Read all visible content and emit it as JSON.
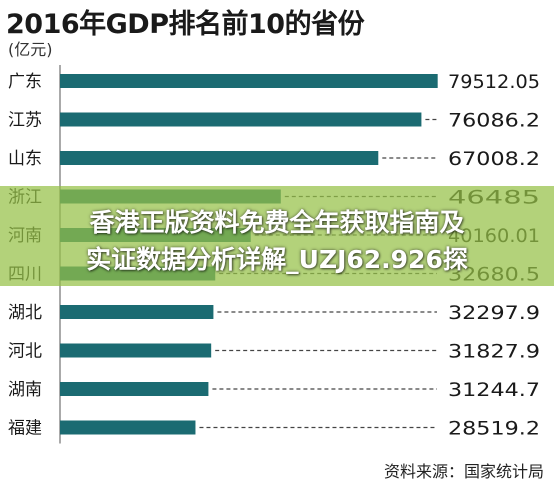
{
  "chart_data": {
    "type": "bar",
    "orientation": "horizontal",
    "title": "2016年GDP排名前10的省份",
    "unit": "(亿元)",
    "categories": [
      "广东",
      "江苏",
      "山东",
      "浙江",
      "河南",
      "四川",
      "湖北",
      "河北",
      "湖南",
      "福建"
    ],
    "values": [
      79512.05,
      76086.2,
      67008.2,
      46485,
      40160.01,
      32680.5,
      32297.9,
      31827.9,
      31244.7,
      28519.2
    ],
    "value_labels": [
      "79512.05",
      "76086.2",
      "67008.2",
      "46485",
      "40160.01",
      "32680.5",
      "32297.9",
      "31827.9",
      "31244.7",
      "28519.2"
    ],
    "xlim": [
      0,
      80000
    ],
    "grid": false,
    "source": "资料来源：国家统计局",
    "bar_color": "#1b6b72",
    "label_color": "#1a1a1a"
  },
  "overlay": {
    "line1": "香港正版资料免费全年获取指南及",
    "line2": "实证数据分析详解_UZJ62.926探",
    "color": "#96c046"
  }
}
